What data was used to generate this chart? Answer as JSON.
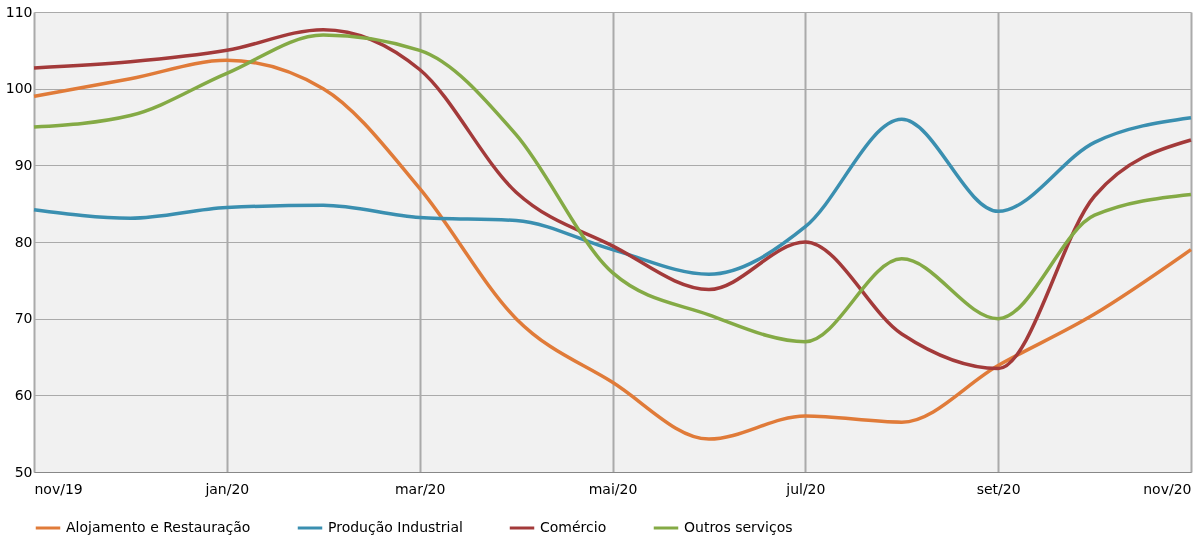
{
  "chart_data": {
    "type": "line",
    "categories": [
      "nov/19",
      null,
      "jan/20",
      null,
      "mar/20",
      null,
      "mai/20",
      null,
      "jul/20",
      null,
      "set/20",
      null,
      "nov/20"
    ],
    "series": [
      {
        "name": "Alojamento e Restauração",
        "color": "#e07b39",
        "values": [
          99,
          101.3,
          103.7,
          100,
          87,
          70,
          61.7,
          54.3,
          57.3,
          56.5,
          63.9,
          70.6,
          79
        ]
      },
      {
        "name": "Produção Industrial",
        "color": "#3a8fb0",
        "values": [
          84.2,
          83.1,
          84.5,
          84.8,
          83.2,
          82.8,
          79,
          75.8,
          82,
          96,
          84,
          93,
          96.2
        ]
      },
      {
        "name": "Comércio",
        "color": "#a33a3a",
        "values": [
          102.7,
          103.5,
          105,
          107.7,
          102.5,
          86.5,
          79.5,
          73.8,
          80,
          68,
          63.5,
          86,
          93.3
        ]
      },
      {
        "name": "Outros serviços",
        "color": "#84aa45",
        "values": [
          95,
          96.5,
          102,
          107,
          105,
          94,
          76,
          70.5,
          67,
          77.8,
          70,
          83.5,
          86.2
        ]
      }
    ],
    "ylim": [
      50,
      110
    ],
    "yticks": [
      50,
      60,
      70,
      80,
      90,
      100,
      110
    ],
    "grid": true,
    "legend": "bottom",
    "marker": "none",
    "line_style": "solid"
  }
}
